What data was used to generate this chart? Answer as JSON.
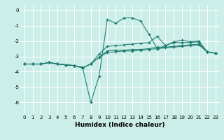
{
  "xlabel": "Humidex (Indice chaleur)",
  "bg_color": "#cceee8",
  "grid_color": "#ffffff",
  "line_color": "#1a7a6e",
  "xlim": [
    -0.5,
    23.5
  ],
  "ylim": [
    -6.8,
    0.3
  ],
  "yticks": [
    0,
    -1,
    -2,
    -3,
    -4,
    -5,
    -6
  ],
  "xticks": [
    0,
    1,
    2,
    3,
    4,
    5,
    6,
    7,
    8,
    9,
    10,
    11,
    12,
    13,
    14,
    15,
    16,
    17,
    18,
    19,
    20,
    21,
    22,
    23
  ],
  "tick_fontsize": 5.0,
  "xlabel_fontsize": 6.5,
  "lines": [
    {
      "x": [
        0,
        1,
        2,
        3,
        4,
        5,
        6,
        7,
        8,
        9,
        10,
        11,
        12,
        13,
        14,
        15,
        16,
        17,
        18,
        19,
        20,
        21,
        22,
        23
      ],
      "y": [
        -3.5,
        -3.5,
        -3.5,
        -3.4,
        -3.5,
        -3.55,
        -3.6,
        -3.7,
        -6.0,
        -4.3,
        -0.6,
        -0.85,
        -0.5,
        -0.5,
        -0.7,
        -1.55,
        -2.5,
        -2.3,
        -2.1,
        -2.1,
        -2.1,
        -2.05,
        -2.7,
        -2.8
      ]
    },
    {
      "x": [
        0,
        1,
        2,
        3,
        4,
        5,
        6,
        7,
        8,
        9,
        10,
        11,
        12,
        13,
        14,
        15,
        16,
        17,
        18,
        19,
        20,
        21,
        22,
        23
      ],
      "y": [
        -3.5,
        -3.5,
        -3.5,
        -3.4,
        -3.5,
        -3.55,
        -3.6,
        -3.75,
        -3.5,
        -3.05,
        -2.65,
        -2.6,
        -2.6,
        -2.55,
        -2.55,
        -2.5,
        -2.4,
        -2.4,
        -2.35,
        -2.3,
        -2.25,
        -2.2,
        -2.7,
        -2.8
      ]
    },
    {
      "x": [
        0,
        1,
        2,
        3,
        4,
        5,
        6,
        7,
        8,
        9,
        10,
        11,
        12,
        13,
        14,
        15,
        16,
        17,
        18,
        19,
        20,
        21,
        22,
        23
      ],
      "y": [
        -3.5,
        -3.5,
        -3.5,
        -3.4,
        -3.5,
        -3.55,
        -3.6,
        -3.75,
        -3.5,
        -3.05,
        -2.75,
        -2.7,
        -2.65,
        -2.65,
        -2.6,
        -2.55,
        -2.5,
        -2.45,
        -2.4,
        -2.35,
        -2.3,
        -2.25,
        -2.7,
        -2.8
      ]
    },
    {
      "x": [
        0,
        1,
        2,
        3,
        4,
        5,
        6,
        7,
        8,
        9,
        10,
        11,
        12,
        13,
        14,
        15,
        16,
        17,
        18,
        19,
        20,
        21,
        22,
        23
      ],
      "y": [
        -3.5,
        -3.5,
        -3.5,
        -3.4,
        -3.5,
        -3.55,
        -3.6,
        -3.75,
        -3.5,
        -2.85,
        -2.35,
        -2.3,
        -2.25,
        -2.2,
        -2.15,
        -2.1,
        -1.7,
        -2.3,
        -2.05,
        -1.95,
        -2.05,
        -2.0,
        -2.7,
        -2.8
      ]
    }
  ]
}
